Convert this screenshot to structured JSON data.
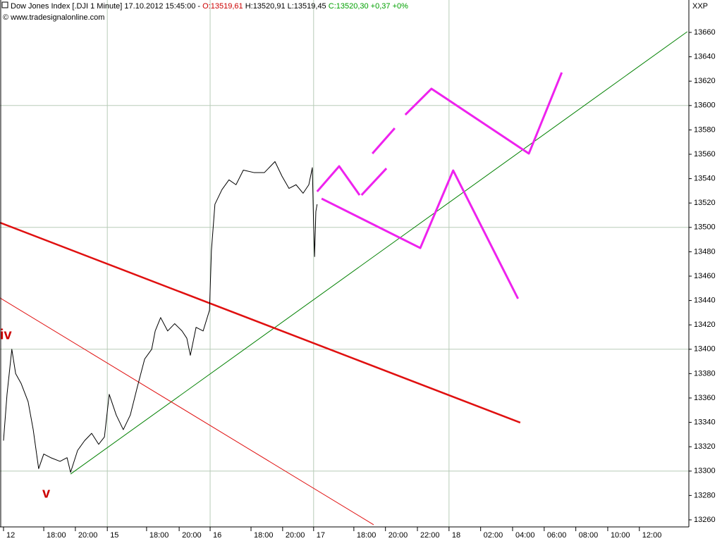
{
  "chart_data": {
    "type": "line",
    "title": "Dow Jones Index [.DJI  1 Minute] 17.10.2012 15:45:00 -",
    "header_open": "O:13519,61",
    "header_range": "H:13520,91 L:13519,45",
    "header_close": "C:13520,30 +0,37 +0%",
    "source": "© www.tradesignalonline.com",
    "axis_name": "XXP",
    "annotations": [
      "iv",
      "v"
    ],
    "grid": true,
    "xlim": [
      -0.11,
      21.46
    ],
    "ylim": [
      13254.2,
      13686.6
    ],
    "yticks": [
      13260,
      13280,
      13300,
      13320,
      13340,
      13360,
      13380,
      13400,
      13420,
      13440,
      13460,
      13480,
      13500,
      13520,
      13540,
      13560,
      13580,
      13600,
      13620,
      13640,
      13660
    ],
    "xticks": [
      {
        "value": 0,
        "label": "12"
      },
      {
        "value": 1.26,
        "label": "18:00"
      },
      {
        "value": 2.25,
        "label": "20:00"
      },
      {
        "value": 3.25,
        "label": "15"
      },
      {
        "value": 4.48,
        "label": "18:00"
      },
      {
        "value": 5.5,
        "label": "20:00"
      },
      {
        "value": 6.47,
        "label": "16"
      },
      {
        "value": 7.75,
        "label": "18:00"
      },
      {
        "value": 8.74,
        "label": "20:00"
      },
      {
        "value": 9.71,
        "label": "17"
      },
      {
        "value": 10.97,
        "label": "18:00"
      },
      {
        "value": 11.96,
        "label": "20:00"
      },
      {
        "value": 12.96,
        "label": "22:00"
      },
      {
        "value": 13.95,
        "label": "18"
      },
      {
        "value": 14.94,
        "label": "02:00"
      },
      {
        "value": 15.94,
        "label": "04:00"
      },
      {
        "value": 16.93,
        "label": "06:00"
      },
      {
        "value": 17.92,
        "label": "08:00"
      },
      {
        "value": 18.92,
        "label": "10:00"
      },
      {
        "value": 19.91,
        "label": "12:00"
      }
    ],
    "series": [
      {
        "color": "#000000",
        "x": [
          0,
          0.11,
          0.26,
          0.38,
          0.55,
          0.77,
          0.93,
          1.1,
          1.26,
          1.48,
          1.77,
          1.99,
          2.1,
          2.32,
          2.54,
          2.76,
          2.98,
          3.16,
          3.31,
          3.53,
          3.75,
          3.97,
          4.19,
          4.42,
          4.64,
          4.75,
          4.92,
          5.14,
          5.36,
          5.59,
          5.74,
          5.85,
          6.03,
          6.25,
          6.45,
          6.51,
          6.62,
          6.84,
          7.06,
          7.28,
          7.51,
          7.84,
          8.17,
          8.5,
          8.72,
          8.94,
          9.16,
          9.38,
          9.56,
          9.67,
          9.71,
          9.74,
          9.78,
          9.82
        ],
        "values": [
          13325,
          13363,
          13400,
          13380,
          13372,
          13357,
          13334,
          13302,
          13314,
          13311,
          13308,
          13311,
          13299,
          13317,
          13325,
          13331,
          13322,
          13328,
          13363,
          13346,
          13334,
          13346,
          13369,
          13392,
          13400,
          13415,
          13426,
          13415,
          13421,
          13415,
          13409,
          13395,
          13418,
          13415,
          13432,
          13481,
          13519,
          13531,
          13539,
          13535,
          13547,
          13545,
          13545,
          13554,
          13542,
          13532,
          13535,
          13528,
          13535,
          13549,
          13502,
          13476,
          13513,
          13519
        ]
      }
    ],
    "overlays": [
      {
        "color": "#008000",
        "width": 1,
        "x": [
          2.1,
          21.41
        ],
        "values": [
          13297.6,
          13660.6
        ]
      },
      {
        "color": "#e01010",
        "width": 2.5,
        "x": [
          -0.11,
          16.18
        ],
        "values": [
          13503.9,
          13339.8
        ]
      },
      {
        "color": "#e01010",
        "width": 1,
        "x": [
          -0.11,
          11.59
        ],
        "values": [
          13442.1,
          13256.0
        ]
      },
      {
        "color": "#ee22ee",
        "width": 3,
        "x": [
          9.82,
          10.51,
          11.15,
          null,
          11.21,
          11.99,
          null,
          11.55,
          12.25,
          null,
          12.58,
          13.4,
          16.45,
          17.48,
          null,
          9.96,
          13.05,
          14.08,
          16.11
        ],
        "values": [
          13529.4,
          13550.2,
          13526.5,
          null,
          13526.5,
          13548.4,
          null,
          13560.6,
          13581.4,
          null,
          13592.4,
          13613.8,
          13560.6,
          13627.1,
          null,
          13523.6,
          13483.1,
          13546.7,
          13441.5
        ]
      }
    ]
  }
}
